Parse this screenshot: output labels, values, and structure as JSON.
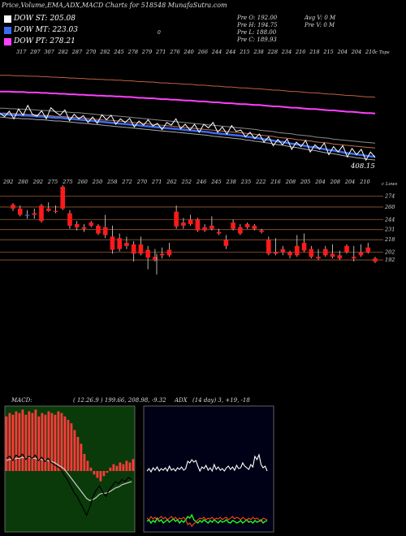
{
  "header": {
    "title": "Price,Volume,EMA,ADX,MACD Charts for 518548   MunafaSutra.com",
    "marker": "0"
  },
  "legend": [
    {
      "label": "DOW ST: 205.08",
      "color": "#ffffff"
    },
    {
      "label": "DOW MT: 223.03",
      "color": "#3a6cf0"
    },
    {
      "label": "DOW PT: 278.21",
      "color": "#ff40ff"
    }
  ],
  "info_left": [
    "Pre   O: 192.00",
    "Pre   H: 194.75",
    "Pre   L: 188.00",
    "Pre   C: 189.93"
  ],
  "info_right": [
    "Avg V: 0   M",
    "Pre   V: 0   M"
  ],
  "top_panel": {
    "ticks": [
      "317",
      "297",
      "307",
      "282",
      "287",
      "270",
      "292",
      "245",
      "278",
      "279",
      "271",
      "276",
      "240",
      "266",
      "244",
      "244",
      "215",
      "238",
      "228",
      "234",
      "216",
      "218",
      "215",
      "204",
      "204",
      "210"
    ],
    "axis_label": "c Tops",
    "last_value": "408.15",
    "series": {
      "price": [
        342,
        335,
        347,
        330,
        352,
        338,
        360,
        340,
        336,
        348,
        330,
        355,
        345,
        338,
        350,
        326,
        340,
        330,
        337,
        322,
        334,
        320,
        339,
        328,
        338,
        318,
        330,
        322,
        331,
        312,
        325,
        316,
        328,
        314,
        320,
        306,
        322,
        316,
        330,
        308,
        318,
        305,
        318,
        300,
        318,
        310,
        322,
        300,
        312,
        296,
        315,
        302,
        305,
        290,
        300,
        286,
        296,
        278,
        290,
        270,
        284,
        272,
        285,
        262,
        278,
        268,
        282,
        256,
        272,
        262,
        276,
        250,
        268,
        256,
        270,
        245,
        264,
        250,
        262,
        238,
        256,
        244
      ],
      "ema_short": [
        345,
        344,
        343,
        342,
        342,
        341,
        341,
        340,
        339,
        339,
        338,
        337,
        336,
        336,
        335,
        334,
        333,
        332,
        331,
        330,
        329,
        328,
        327,
        326,
        325,
        324,
        323,
        322,
        321,
        320,
        319,
        318,
        317,
        316,
        315,
        314,
        313,
        312,
        311,
        310,
        309,
        308,
        307,
        306,
        305,
        304,
        302,
        301,
        300,
        299,
        298,
        297,
        296,
        294,
        293,
        291,
        290,
        288,
        287,
        285,
        283,
        282,
        280,
        278,
        277,
        275,
        273,
        271,
        270,
        268,
        266,
        264,
        263,
        261,
        259,
        257,
        256,
        254,
        253,
        251,
        250,
        249
      ],
      "ema_mid": [
        350,
        350,
        349,
        349,
        348,
        348,
        347,
        347,
        346,
        345,
        345,
        344,
        343,
        343,
        342,
        341,
        340,
        340,
        339,
        338,
        337,
        336,
        335,
        334,
        334,
        333,
        332,
        331,
        330,
        329,
        328,
        327,
        326,
        325,
        324,
        323,
        322,
        321,
        320,
        319,
        318,
        317,
        316,
        315,
        314,
        313,
        312,
        311,
        310,
        309,
        308,
        307,
        306,
        305,
        304,
        303,
        301,
        300,
        299,
        298,
        296,
        295,
        294,
        293,
        291,
        290,
        289,
        288,
        286,
        285,
        284,
        283,
        281,
        280,
        279,
        278,
        277,
        276,
        275,
        274,
        273,
        272
      ],
      "ema_long": [
        380,
        380,
        380,
        379,
        379,
        379,
        378,
        378,
        378,
        377,
        377,
        376,
        376,
        375,
        375,
        374,
        374,
        373,
        373,
        372,
        372,
        371,
        371,
        370,
        370,
        369,
        369,
        368,
        368,
        367,
        366,
        366,
        365,
        365,
        364,
        363,
        363,
        362,
        362,
        361,
        360,
        360,
        359,
        358,
        358,
        357,
        356,
        356,
        355,
        354,
        354,
        353,
        352,
        352,
        351,
        350,
        350,
        349,
        348,
        347,
        347,
        346,
        345,
        344,
        344,
        343,
        342,
        341,
        341,
        340,
        339,
        338,
        338,
        337,
        336,
        335,
        335,
        334,
        333,
        332,
        332,
        331
      ]
    }
  },
  "candle_panel": {
    "ticks": [
      "292",
      "280",
      "292",
      "275",
      "275",
      "260",
      "250",
      "258",
      "272",
      "270",
      "271",
      "262",
      "252",
      "246",
      "245",
      "238",
      "235",
      "222",
      "216",
      "208",
      "205",
      "204",
      "208",
      "204",
      "210"
    ],
    "axis_label": "c Lows",
    "levels": [
      "274",
      "260",
      "244",
      "231",
      "218",
      "202",
      "192"
    ],
    "candles": [
      [
        263,
        265,
        258,
        255
      ],
      [
        258,
        262,
        250,
        248
      ],
      [
        250,
        256,
        250,
        245
      ],
      [
        252,
        258,
        250,
        245
      ],
      [
        262,
        264,
        242,
        240
      ],
      [
        258,
        266,
        255,
        254
      ],
      [
        255,
        262,
        254,
        252
      ],
      [
        286,
        288,
        258,
        256
      ],
      [
        252,
        256,
        236,
        232
      ],
      [
        238,
        242,
        234,
        230
      ],
      [
        234,
        238,
        232,
        228
      ],
      [
        240,
        242,
        236,
        234
      ],
      [
        236,
        238,
        226,
        224
      ],
      [
        234,
        250,
        224,
        220
      ],
      [
        222,
        236,
        205,
        200
      ],
      [
        220,
        226,
        206,
        203
      ],
      [
        214,
        222,
        210,
        206
      ],
      [
        212,
        216,
        200,
        190
      ],
      [
        212,
        222,
        200,
        198
      ],
      [
        205,
        210,
        195,
        180
      ],
      [
        196,
        206,
        192,
        190
      ],
      [
        200,
        208,
        198,
        194
      ],
      [
        205,
        214,
        198,
        196
      ],
      [
        254,
        262,
        235,
        232
      ],
      [
        240,
        246,
        236,
        232
      ],
      [
        244,
        250,
        238,
        236
      ],
      [
        244,
        246,
        230,
        228
      ],
      [
        234,
        238,
        230,
        228
      ],
      [
        236,
        248,
        232,
        230
      ],
      [
        228,
        232,
        226,
        224
      ],
      [
        218,
        224,
        210,
        206
      ],
      [
        240,
        244,
        232,
        230
      ],
      [
        234,
        238,
        226,
        224
      ],
      [
        238,
        240,
        234,
        232
      ],
      [
        236,
        238,
        232,
        230
      ],
      [
        230,
        232,
        228,
        226
      ],
      [
        218,
        222,
        200,
        198
      ],
      [
        202,
        220,
        200,
        198
      ],
      [
        206,
        210,
        202,
        198
      ],
      [
        202,
        204,
        198,
        194
      ],
      [
        210,
        224,
        198,
        196
      ],
      [
        214,
        226,
        204,
        202
      ],
      [
        206,
        210,
        196,
        194
      ],
      [
        196,
        206,
        194,
        192
      ],
      [
        206,
        210,
        198,
        196
      ],
      [
        200,
        212,
        196,
        194
      ],
      [
        198,
        204,
        194,
        192
      ],
      [
        210,
        212,
        202,
        200
      ],
      [
        196,
        210,
        194,
        190
      ],
      [
        202,
        212,
        198,
        196
      ],
      [
        208,
        214,
        202,
        200
      ],
      [
        194,
        196,
        190,
        188
      ]
    ]
  },
  "macd_panel": {
    "label": "MACD:",
    "values": "( 12.26.9 ) 199.66,  208.98,  -9.32",
    "hist": [
      32,
      34,
      33,
      35,
      34,
      36,
      33,
      35,
      34,
      36,
      32,
      34,
      33,
      35,
      34,
      33,
      35,
      34,
      32,
      30,
      28,
      24,
      20,
      16,
      10,
      6,
      2,
      -2,
      -4,
      -6,
      -3,
      -1,
      2,
      4,
      3,
      5,
      4,
      6,
      5,
      7
    ],
    "macd": [
      12,
      14,
      10,
      15,
      13,
      16,
      11,
      14,
      12,
      15,
      10,
      13,
      9,
      12,
      8,
      6,
      4,
      2,
      -4,
      -8,
      -14,
      -20,
      -24,
      -30,
      -36,
      -42,
      -34,
      -24,
      -18,
      -14,
      -20,
      -24,
      -18,
      -14,
      -10,
      -12,
      -8,
      -10,
      -6,
      -8
    ],
    "signal": [
      10,
      11,
      11,
      12,
      12,
      13,
      12,
      13,
      12,
      12,
      11,
      11,
      10,
      10,
      9,
      8,
      6,
      4,
      2,
      -2,
      -6,
      -10,
      -14,
      -18,
      -22,
      -26,
      -28,
      -27,
      -25,
      -22,
      -21,
      -21,
      -20,
      -18,
      -16,
      -15,
      -13,
      -12,
      -11,
      -10
    ]
  },
  "adx_panel": {
    "label": "ADX",
    "values": "(14  day) 3,  +19,  -18",
    "adx": [
      30,
      33,
      29,
      34,
      31,
      35,
      30,
      33,
      31,
      34,
      30,
      36,
      31,
      33,
      30,
      34,
      32,
      35,
      31,
      33,
      42,
      40,
      44,
      41,
      43,
      36,
      30,
      35,
      33,
      37,
      31,
      34,
      30,
      38,
      32,
      35,
      31,
      33,
      30,
      34,
      36,
      32,
      35,
      31,
      37,
      33,
      34,
      40,
      36,
      34,
      32,
      38,
      35,
      48,
      44,
      50,
      38,
      34,
      36,
      30
    ],
    "plus_di": [
      18,
      20,
      16,
      19,
      17,
      22,
      18,
      20,
      16,
      18,
      20,
      17,
      19,
      21,
      18,
      20,
      16,
      19,
      17,
      20,
      24,
      22,
      26,
      20,
      18,
      16,
      19,
      17,
      20,
      18,
      16,
      19,
      17,
      20,
      18,
      16,
      19,
      17,
      18,
      20,
      17,
      16,
      19,
      18,
      16,
      17,
      19,
      16,
      18,
      20,
      17,
      18,
      16,
      19,
      17,
      18,
      20,
      16,
      18,
      19
    ],
    "minus_di": [
      22,
      20,
      24,
      21,
      23,
      20,
      22,
      24,
      21,
      23,
      20,
      22,
      24,
      21,
      23,
      20,
      22,
      21,
      23,
      20,
      14,
      16,
      12,
      15,
      17,
      20,
      22,
      21,
      23,
      20,
      22,
      21,
      23,
      20,
      22,
      21,
      23,
      20,
      22,
      23,
      20,
      22,
      24,
      21,
      23,
      22,
      20,
      23,
      21,
      19,
      22,
      20,
      23,
      21,
      22,
      20,
      18,
      22,
      21,
      20
    ]
  }
}
